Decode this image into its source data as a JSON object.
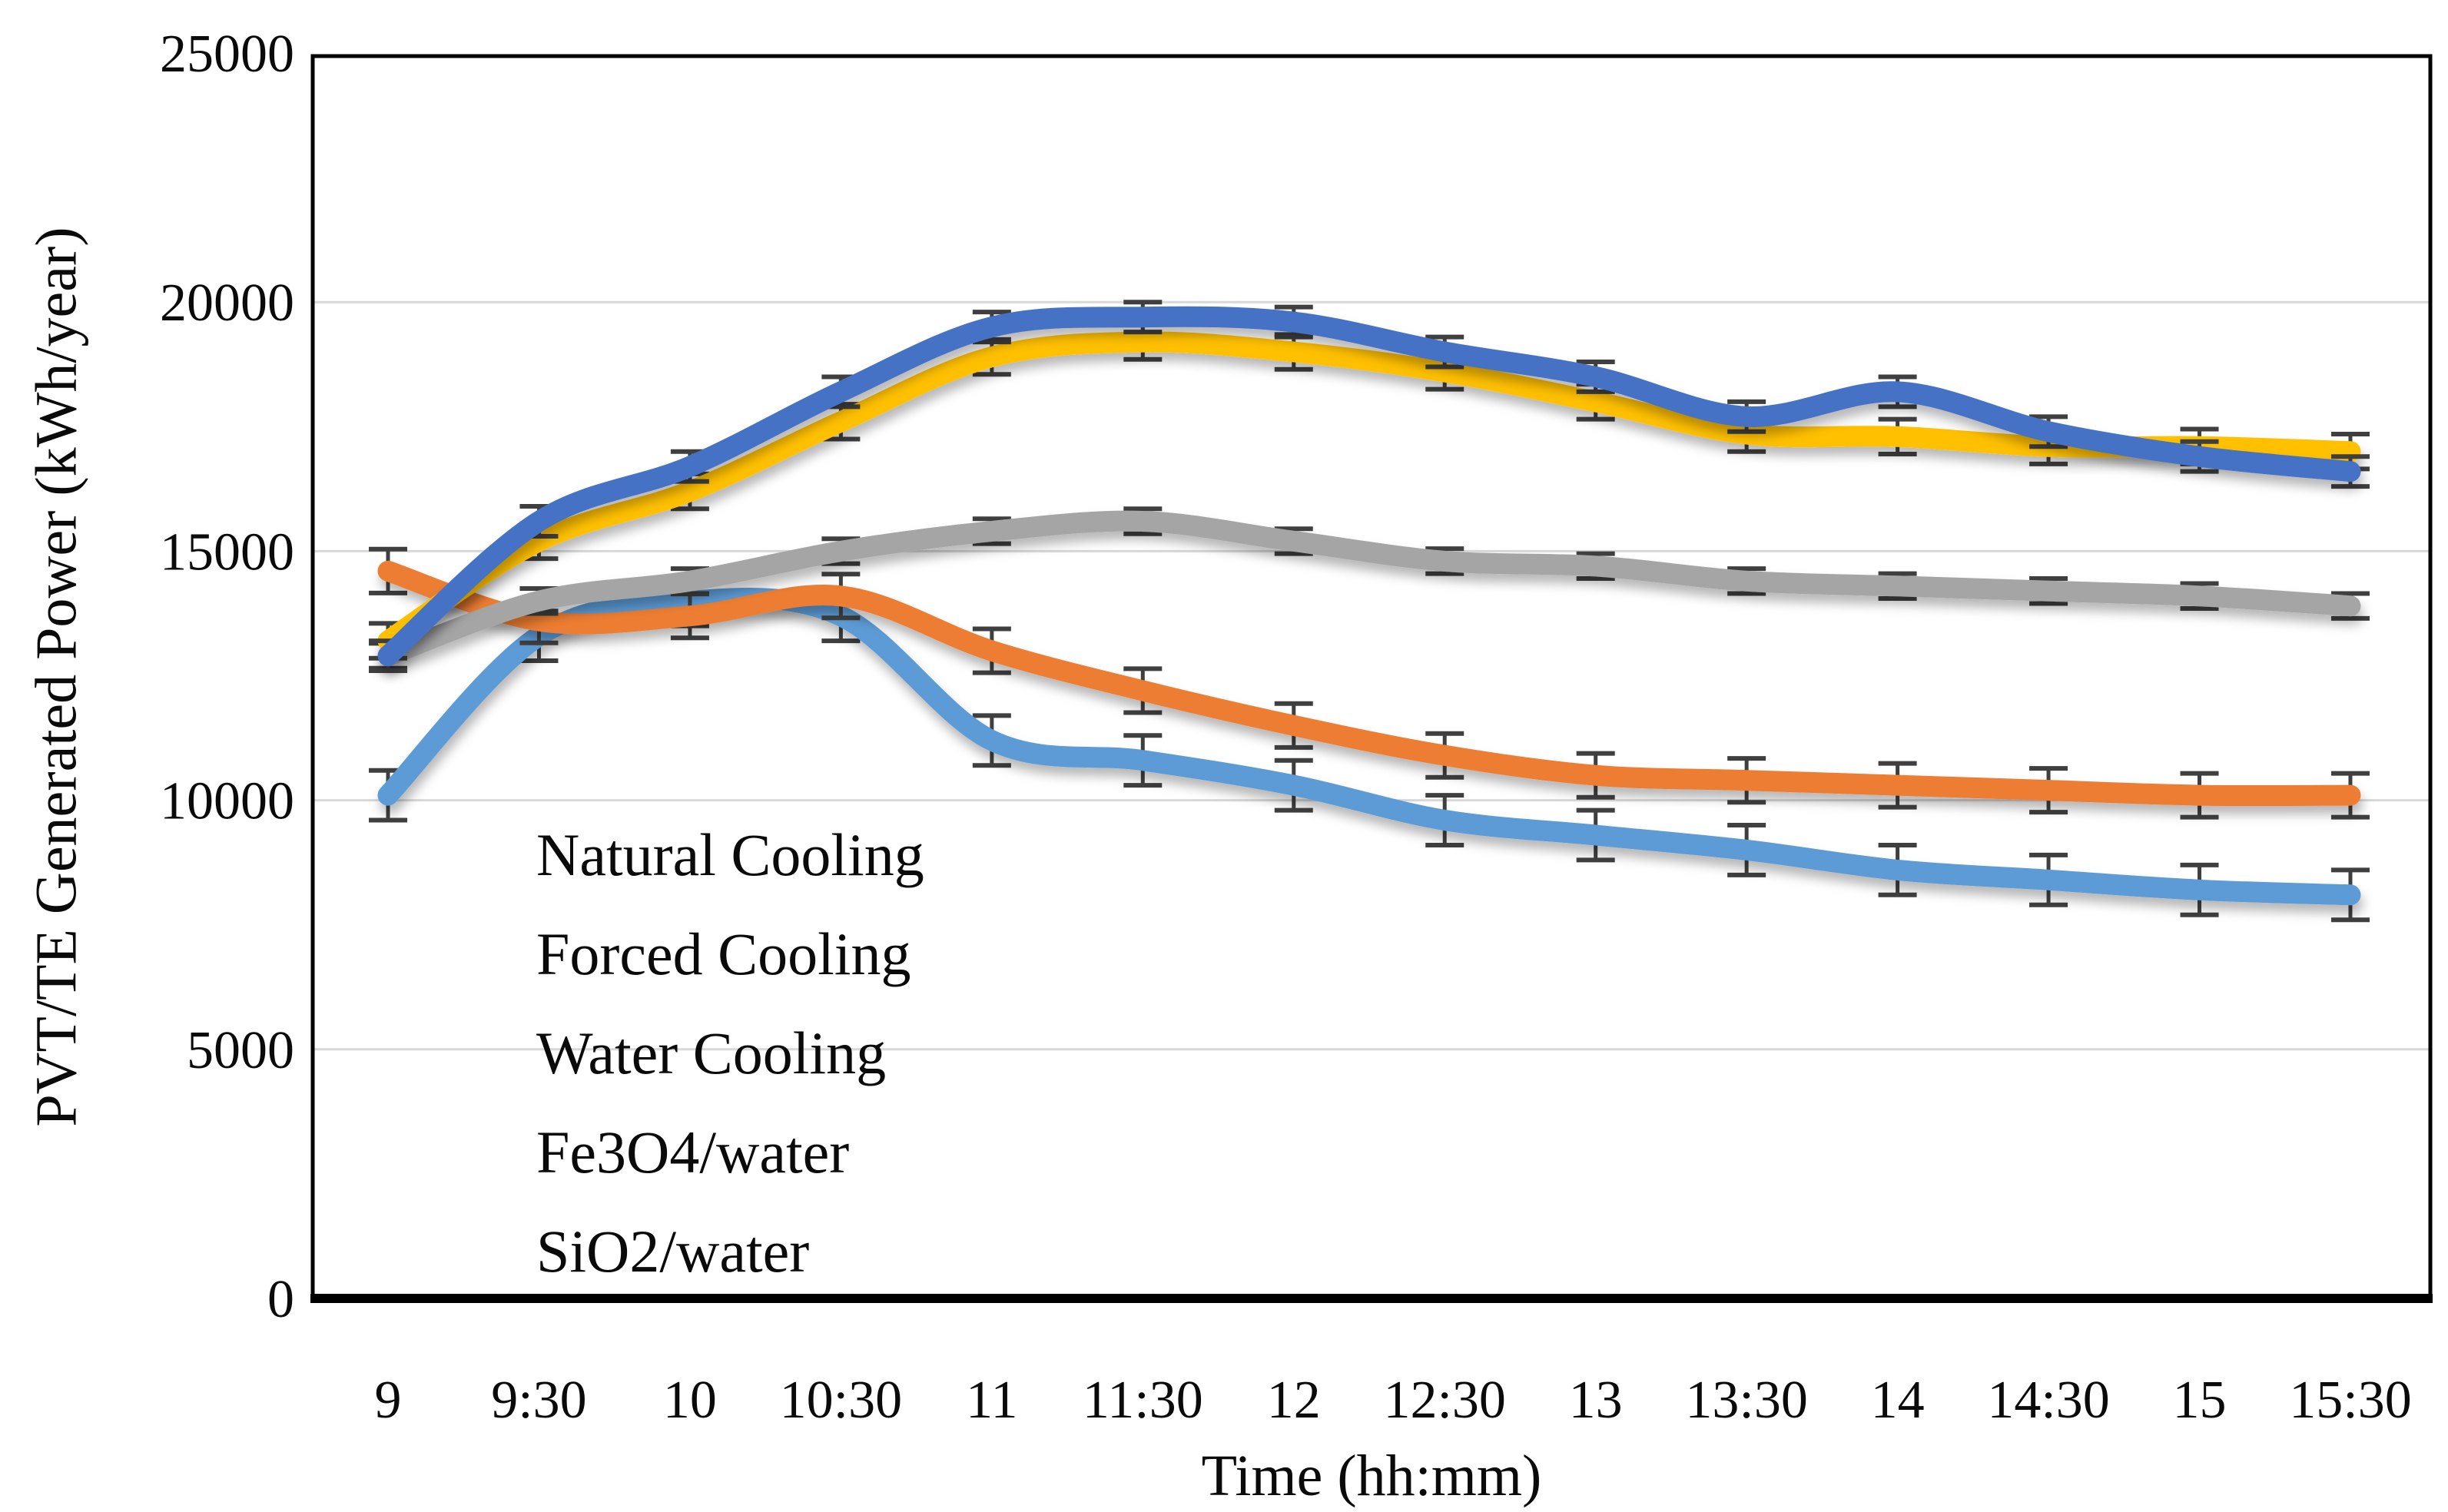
{
  "chart_data": {
    "type": "line",
    "title": "",
    "xlabel": "Time (hh:mm)",
    "ylabel": "PVT/TE Generated Power (kWh/year)",
    "x_labels": [
      "9",
      "9:30",
      "10",
      "10:30",
      "11",
      "11:30",
      "12",
      "12:30",
      "13",
      "13:30",
      "14",
      "14:30",
      "15",
      "15:30"
    ],
    "ylim": [
      0,
      25000
    ],
    "ytick_values": [
      0,
      5000,
      10000,
      15000,
      20000,
      25000
    ],
    "ytick_labels": [
      "0",
      "5000",
      "10000",
      "15000",
      "20000",
      "25000"
    ],
    "grid": true,
    "gridline_values": [
      5000,
      10000,
      15000,
      20000
    ],
    "legend_position": "inside-left-lower",
    "smooth_lines": true,
    "colors": {
      "gridline": "#d8d8d8",
      "plot_border": "#000000",
      "axis_line": "#000000",
      "error_bar": "#3f3f3f",
      "background": "#ffffff"
    },
    "series": [
      {
        "name": "Natural Cooling",
        "color": "#5B9BD5",
        "error": 500,
        "values": [
          10100,
          13300,
          14000,
          13700,
          11200,
          10800,
          10300,
          9600,
          9300,
          9000,
          8600,
          8400,
          8200,
          8100
        ]
      },
      {
        "name": "Forced Cooling",
        "color": "#ED7D31",
        "error": 440,
        "values": [
          14600,
          13600,
          13700,
          14100,
          13000,
          12200,
          11500,
          10900,
          10500,
          10400,
          10300,
          10200,
          10100,
          10100
        ]
      },
      {
        "name": "Water Cooling",
        "color": "#A5A5A5",
        "error": 250,
        "values": [
          12900,
          14000,
          14400,
          15000,
          15400,
          15600,
          15200,
          14800,
          14700,
          14400,
          14300,
          14200,
          14100,
          13900
        ]
      },
      {
        "name": "Fe3O4/water",
        "color": "#FFC000",
        "error": 350,
        "values": [
          13200,
          15200,
          16200,
          17600,
          18900,
          19200,
          19000,
          18600,
          18000,
          17350,
          17300,
          17100,
          17100,
          17000
        ]
      },
      {
        "name": "SiO2/water",
        "color": "#4472C4",
        "error": 300,
        "values": [
          12900,
          15600,
          16700,
          18200,
          19500,
          19700,
          19600,
          19000,
          18500,
          17700,
          18200,
          17400,
          16900,
          16600
        ]
      }
    ]
  }
}
